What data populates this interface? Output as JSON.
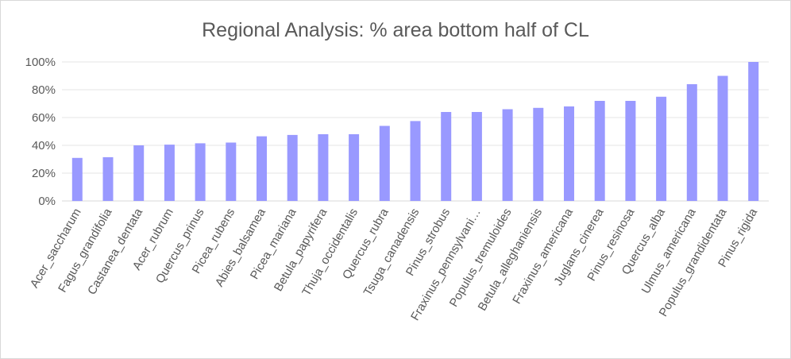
{
  "chart_data": {
    "type": "bar",
    "title": "Regional Analysis: % area bottom half of CL",
    "xlabel": "",
    "ylabel": "",
    "ylim": [
      0,
      1
    ],
    "yticks": [
      "0%",
      "20%",
      "40%",
      "60%",
      "80%",
      "100%"
    ],
    "grid": true,
    "legend": "none",
    "bar_color": "#9999ff",
    "categories": [
      "Acer_saccharum",
      "Fagus_grandifolia",
      "Castanea_dentata",
      "Acer_rubrum",
      "Quercus_prinus",
      "Picea_rubens",
      "Abies_balsamea",
      "Picea_mariana",
      "Betula_papyrifera",
      "Thuja_occidentalis",
      "Quercus_rubra",
      "Tsuga_canadensis",
      "Pinus_strobus",
      "Fraxinus_pennsylvani…",
      "Populus_tremuloides",
      "Betula_alleghaniensis",
      "Fraxinus_americana",
      "Juglans_cinerea",
      "Pinus_resinosa",
      "Quercus_alba",
      "Ulmus_americana",
      "Populus_grandidentata",
      "Pinus_rigida"
    ],
    "values": [
      0.31,
      0.315,
      0.4,
      0.405,
      0.415,
      0.42,
      0.465,
      0.475,
      0.48,
      0.48,
      0.54,
      0.575,
      0.64,
      0.64,
      0.66,
      0.67,
      0.68,
      0.72,
      0.72,
      0.75,
      0.84,
      0.9,
      1.0
    ]
  }
}
